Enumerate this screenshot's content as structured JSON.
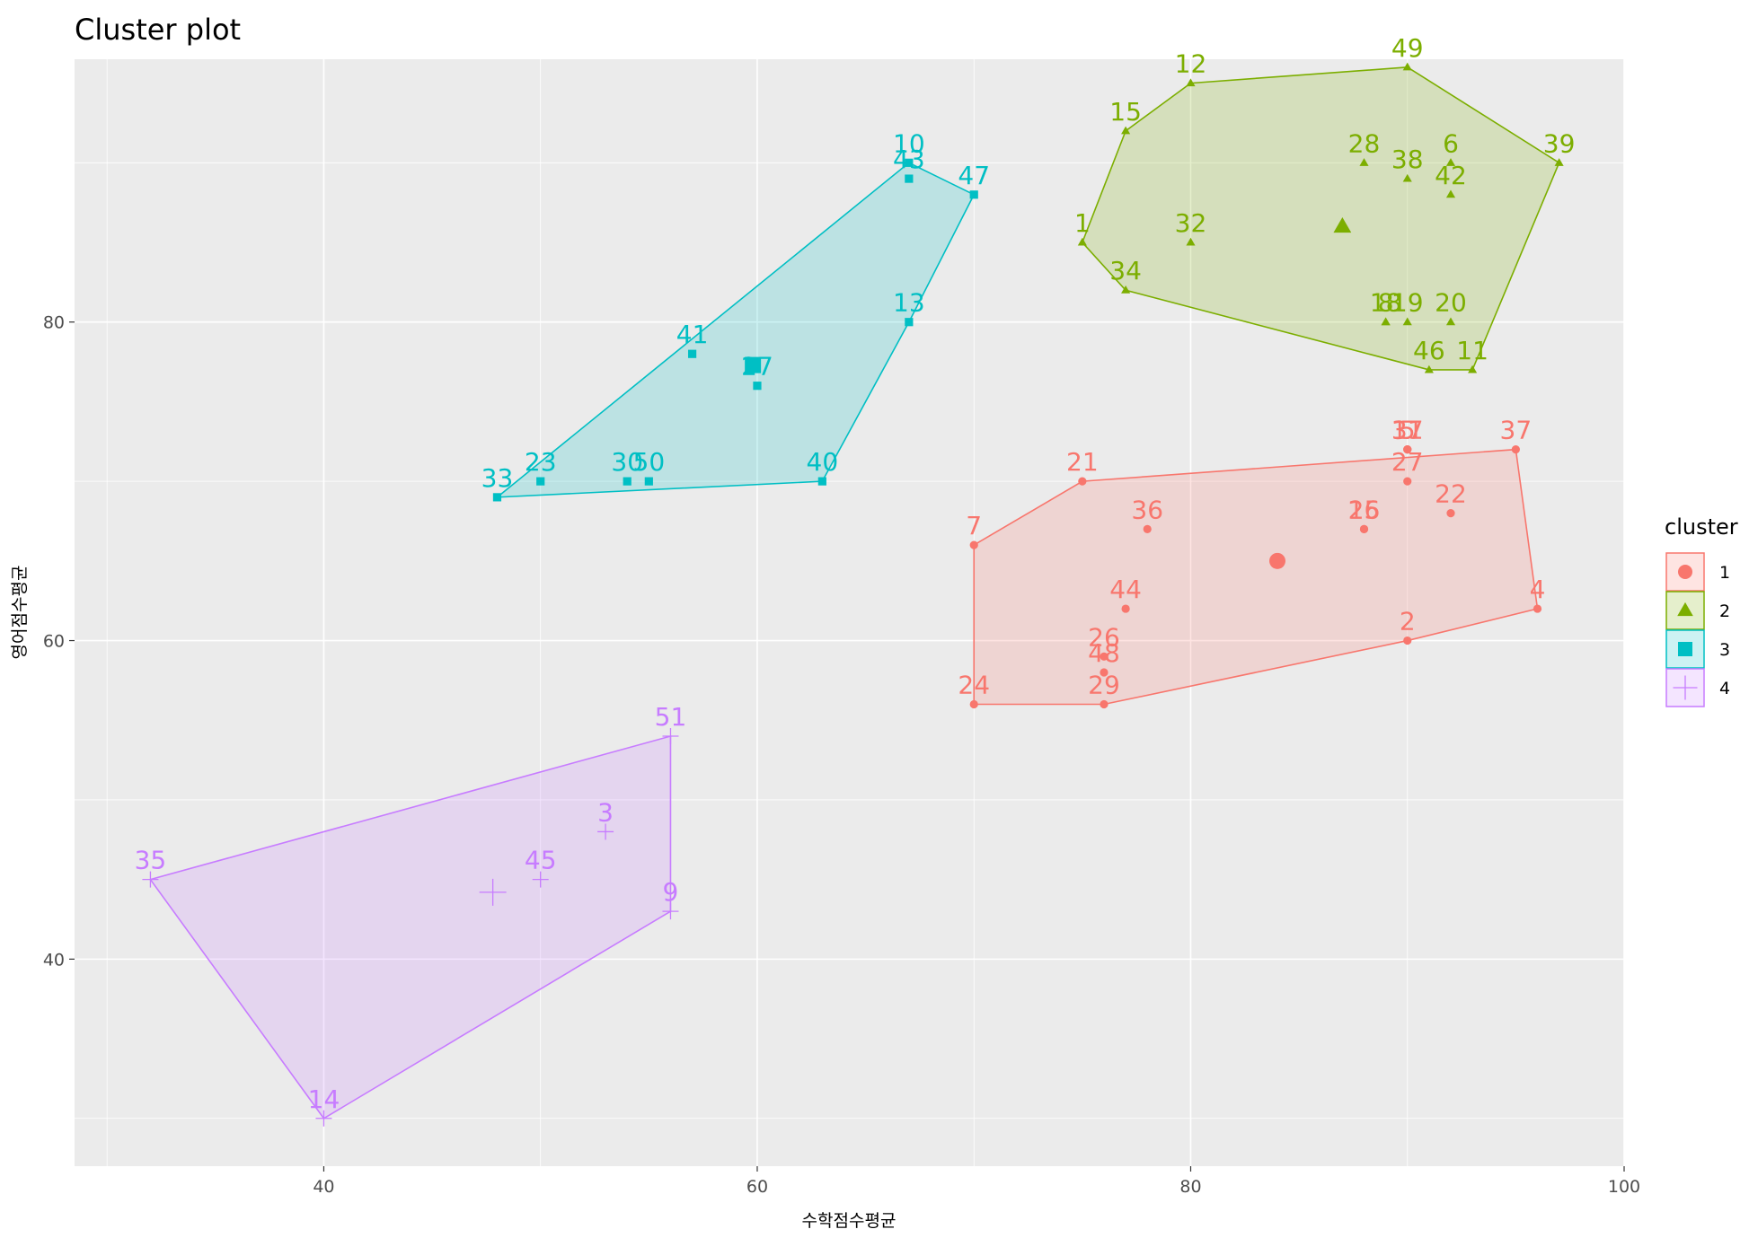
{
  "chart_data": {
    "type": "scatter",
    "title": "Cluster plot",
    "xlabel": "수학점수평균",
    "ylabel": "영어점수평균",
    "xlim": [
      28.5,
      100
    ],
    "ylim": [
      27,
      96.5
    ],
    "x_ticks": [
      40,
      60,
      80,
      100
    ],
    "y_ticks": [
      40,
      60,
      80
    ],
    "legend_title": "cluster",
    "legend_position": "right",
    "grid": true,
    "series": [
      {
        "name": "1",
        "color": "#F8766D",
        "marker": "circle",
        "center": [
          84,
          65
        ],
        "hull": [
          "7",
          "21",
          "37",
          "4",
          "2",
          "29",
          "24"
        ],
        "points": [
          {
            "label": "2",
            "x": 90,
            "y": 60
          },
          {
            "label": "4",
            "x": 96,
            "y": 62
          },
          {
            "label": "5",
            "x": 90,
            "y": 72
          },
          {
            "label": "7",
            "x": 70,
            "y": 66
          },
          {
            "label": "16",
            "x": 88,
            "y": 67
          },
          {
            "label": "17",
            "x": 90,
            "y": 72
          },
          {
            "label": "21",
            "x": 75,
            "y": 70
          },
          {
            "label": "22",
            "x": 92,
            "y": 68
          },
          {
            "label": "24",
            "x": 70,
            "y": 56
          },
          {
            "label": "25",
            "x": 88,
            "y": 67
          },
          {
            "label": "26",
            "x": 76,
            "y": 59
          },
          {
            "label": "27",
            "x": 90,
            "y": 70
          },
          {
            "label": "29",
            "x": 76,
            "y": 56
          },
          {
            "label": "31",
            "x": 90,
            "y": 72
          },
          {
            "label": "36",
            "x": 78,
            "y": 67
          },
          {
            "label": "37",
            "x": 95,
            "y": 72
          },
          {
            "label": "44",
            "x": 77,
            "y": 62
          },
          {
            "label": "48",
            "x": 76,
            "y": 58
          }
        ]
      },
      {
        "name": "2",
        "color": "#7CAE00",
        "marker": "triangle",
        "center": [
          87,
          86
        ],
        "hull": [
          "12",
          "49",
          "39",
          "11",
          "46",
          "34",
          "1",
          "15"
        ],
        "points": [
          {
            "label": "1",
            "x": 75,
            "y": 85
          },
          {
            "label": "6",
            "x": 92,
            "y": 90
          },
          {
            "label": "8",
            "x": 89,
            "y": 80
          },
          {
            "label": "11",
            "x": 93,
            "y": 77
          },
          {
            "label": "12",
            "x": 80,
            "y": 95
          },
          {
            "label": "15",
            "x": 77,
            "y": 92
          },
          {
            "label": "18",
            "x": 89,
            "y": 80
          },
          {
            "label": "19",
            "x": 90,
            "y": 80
          },
          {
            "label": "20",
            "x": 92,
            "y": 80
          },
          {
            "label": "28",
            "x": 88,
            "y": 90
          },
          {
            "label": "32",
            "x": 80,
            "y": 85
          },
          {
            "label": "34",
            "x": 77,
            "y": 82
          },
          {
            "label": "38",
            "x": 90,
            "y": 89
          },
          {
            "label": "39",
            "x": 97,
            "y": 90
          },
          {
            "label": "42",
            "x": 92,
            "y": 88
          },
          {
            "label": "46",
            "x": 91,
            "y": 77
          },
          {
            "label": "49",
            "x": 90,
            "y": 96
          }
        ]
      },
      {
        "name": "3",
        "color": "#00BFC4",
        "marker": "square",
        "center": [
          59.8,
          77.3
        ],
        "hull": [
          "33",
          "10",
          "47",
          "13",
          "40"
        ],
        "points": [
          {
            "label": "10",
            "x": 67,
            "y": 90
          },
          {
            "label": "13",
            "x": 67,
            "y": 80
          },
          {
            "label": "23",
            "x": 50,
            "y": 70
          },
          {
            "label": "27",
            "x": 60,
            "y": 76
          },
          {
            "label": "30",
            "x": 54,
            "y": 70
          },
          {
            "label": "33",
            "x": 48,
            "y": 69
          },
          {
            "label": "40",
            "x": 63,
            "y": 70
          },
          {
            "label": "41",
            "x": 57,
            "y": 78
          },
          {
            "label": "43",
            "x": 67,
            "y": 89
          },
          {
            "label": "47",
            "x": 70,
            "y": 88
          },
          {
            "label": "50",
            "x": 55,
            "y": 70
          }
        ]
      },
      {
        "name": "4",
        "color": "#C77CFF",
        "marker": "plus",
        "center": [
          47.8,
          44.2
        ],
        "hull": [
          "35",
          "51",
          "9",
          "14"
        ],
        "points": [
          {
            "label": "3",
            "x": 53,
            "y": 48
          },
          {
            "label": "9",
            "x": 56,
            "y": 43
          },
          {
            "label": "14",
            "x": 40,
            "y": 30
          },
          {
            "label": "35",
            "x": 32,
            "y": 45
          },
          {
            "label": "45",
            "x": 50,
            "y": 45
          },
          {
            "label": "51",
            "x": 56,
            "y": 54
          }
        ]
      }
    ]
  }
}
